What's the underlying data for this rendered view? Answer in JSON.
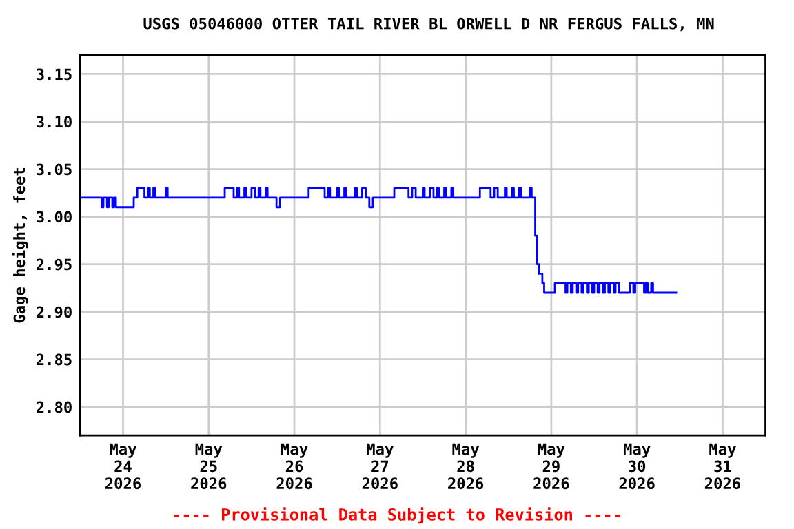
{
  "chart_data": {
    "type": "step",
    "title": "USGS 05046000 OTTER TAIL RIVER BL ORWELL D NR FERGUS FALLS, MN",
    "ylabel": "Gage height, feet",
    "annotations": [
      "---- Provisional Data Subject to Revision ----"
    ],
    "x": [
      "2026-05-23T12:00",
      "2026-05-23T18:00",
      "2026-05-23T18:30",
      "2026-05-23T19:30",
      "2026-05-23T20:00",
      "2026-05-23T21:00",
      "2026-05-23T21:30",
      "2026-05-23T22:00",
      "2026-05-24T03:00",
      "2026-05-24T04:00",
      "2026-05-24T06:00",
      "2026-05-24T07:00",
      "2026-05-24T07:30",
      "2026-05-24T08:30",
      "2026-05-24T09:00",
      "2026-05-24T12:00",
      "2026-05-24T12:30",
      "2026-05-25T04:30",
      "2026-05-25T07:00",
      "2026-05-25T08:00",
      "2026-05-25T08:30",
      "2026-05-25T10:00",
      "2026-05-25T10:30",
      "2026-05-25T12:00",
      "2026-05-25T13:00",
      "2026-05-25T14:00",
      "2026-05-25T14:30",
      "2026-05-25T16:00",
      "2026-05-25T16:30",
      "2026-05-25T19:00",
      "2026-05-25T20:00",
      "2026-05-26T04:00",
      "2026-05-26T08:30",
      "2026-05-26T09:30",
      "2026-05-26T10:00",
      "2026-05-26T12:00",
      "2026-05-26T12:30",
      "2026-05-26T14:00",
      "2026-05-26T14:30",
      "2026-05-26T17:00",
      "2026-05-26T17:30",
      "2026-05-26T19:00",
      "2026-05-26T20:00",
      "2026-05-26T21:00",
      "2026-05-26T22:00",
      "2026-05-27T04:00",
      "2026-05-27T08:00",
      "2026-05-27T09:00",
      "2026-05-27T10:00",
      "2026-05-27T12:00",
      "2026-05-27T12:30",
      "2026-05-27T14:00",
      "2026-05-27T15:00",
      "2026-05-27T16:00",
      "2026-05-27T16:30",
      "2026-05-27T18:00",
      "2026-05-27T18:30",
      "2026-05-27T20:00",
      "2026-05-27T20:30",
      "2026-05-28T04:00",
      "2026-05-28T07:00",
      "2026-05-28T08:00",
      "2026-05-28T09:00",
      "2026-05-28T11:00",
      "2026-05-28T11:30",
      "2026-05-28T13:00",
      "2026-05-28T13:30",
      "2026-05-28T15:00",
      "2026-05-28T15:30",
      "2026-05-28T18:00",
      "2026-05-28T18:30",
      "2026-05-28T19:30",
      "2026-05-28T20:00",
      "2026-05-28T20:30",
      "2026-05-28T21:30",
      "2026-05-28T22:00",
      "2026-05-29T01:00",
      "2026-05-29T04:00",
      "2026-05-29T04:30",
      "2026-05-29T05:30",
      "2026-05-29T06:00",
      "2026-05-29T07:00",
      "2026-05-29T07:30",
      "2026-05-29T08:30",
      "2026-05-29T09:00",
      "2026-05-29T10:00",
      "2026-05-29T10:30",
      "2026-05-29T11:30",
      "2026-05-29T12:00",
      "2026-05-29T13:00",
      "2026-05-29T13:30",
      "2026-05-29T14:30",
      "2026-05-29T15:00",
      "2026-05-29T16:00",
      "2026-05-29T16:30",
      "2026-05-29T17:30",
      "2026-05-29T18:00",
      "2026-05-29T19:00",
      "2026-05-29T22:00",
      "2026-05-29T23:00",
      "2026-05-29T23:30",
      "2026-05-30T02:00",
      "2026-05-30T02:30",
      "2026-05-30T03:00",
      "2026-05-30T04:00",
      "2026-05-30T04:30",
      "2026-05-30T11:00"
    ],
    "series": [
      {
        "color": "#0000ff",
        "values": [
          3.02,
          3.01,
          3.02,
          3.01,
          3.02,
          3.01,
          3.02,
          3.01,
          3.02,
          3.03,
          3.02,
          3.03,
          3.02,
          3.03,
          3.02,
          3.03,
          3.02,
          3.03,
          3.02,
          3.03,
          3.02,
          3.03,
          3.02,
          3.03,
          3.02,
          3.03,
          3.02,
          3.03,
          3.02,
          3.01,
          3.02,
          3.03,
          3.02,
          3.03,
          3.02,
          3.03,
          3.02,
          3.03,
          3.02,
          3.03,
          3.02,
          3.03,
          3.02,
          3.01,
          3.02,
          3.03,
          3.02,
          3.03,
          3.02,
          3.03,
          3.02,
          3.03,
          3.02,
          3.03,
          3.02,
          3.03,
          3.02,
          3.03,
          3.02,
          3.03,
          3.02,
          3.03,
          3.02,
          3.03,
          3.02,
          3.03,
          3.02,
          3.03,
          3.02,
          3.03,
          3.02,
          2.98,
          2.95,
          2.94,
          2.93,
          2.92,
          2.93,
          2.92,
          2.93,
          2.92,
          2.93,
          2.92,
          2.93,
          2.92,
          2.93,
          2.92,
          2.93,
          2.92,
          2.93,
          2.92,
          2.93,
          2.92,
          2.93,
          2.92,
          2.93,
          2.92,
          2.93,
          2.92,
          2.93,
          2.92,
          2.93,
          2.92,
          2.93,
          2.92,
          2.93,
          2.92,
          2.92
        ]
      }
    ],
    "xlim": [
      "2026-05-23T12:00",
      "2026-05-31T12:00"
    ],
    "xticks": [
      {
        "value": "2026-05-24",
        "label": "May\n24\n2026"
      },
      {
        "value": "2026-05-25",
        "label": "May\n25\n2026"
      },
      {
        "value": "2026-05-26",
        "label": "May\n26\n2026"
      },
      {
        "value": "2026-05-27",
        "label": "May\n27\n2026"
      },
      {
        "value": "2026-05-28",
        "label": "May\n28\n2026"
      },
      {
        "value": "2026-05-29",
        "label": "May\n29\n2026"
      },
      {
        "value": "2026-05-30",
        "label": "May\n30\n2026"
      },
      {
        "value": "2026-05-31",
        "label": "May\n31\n2026"
      }
    ],
    "ylim": [
      2.77,
      3.17
    ],
    "yticks": [
      {
        "value": 2.8,
        "label": "2.80"
      },
      {
        "value": 2.85,
        "label": "2.85"
      },
      {
        "value": 2.9,
        "label": "2.90"
      },
      {
        "value": 2.95,
        "label": "2.95"
      },
      {
        "value": 3.0,
        "label": "3.00"
      },
      {
        "value": 3.05,
        "label": "3.05"
      },
      {
        "value": 3.1,
        "label": "3.10"
      },
      {
        "value": 3.15,
        "label": "3.15"
      }
    ],
    "grid": true
  }
}
